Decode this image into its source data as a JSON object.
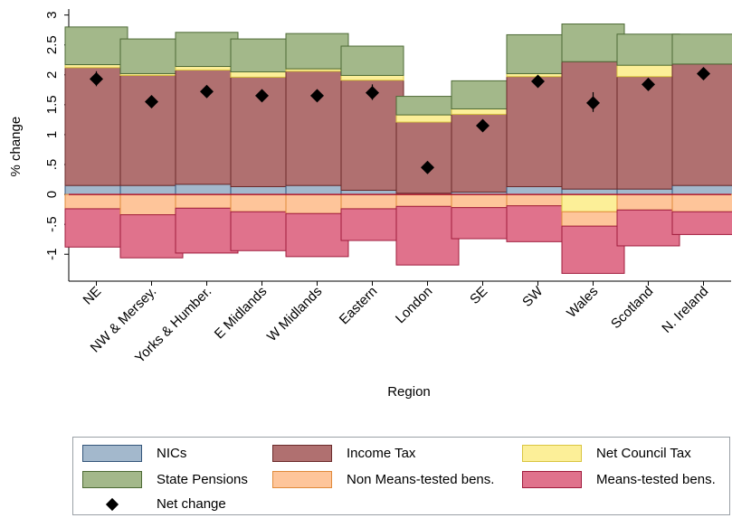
{
  "chart_data": {
    "type": "bar",
    "stacked": true,
    "xlabel": "Region",
    "ylabel": "% change",
    "ylim": [
      -1.45,
      3.1
    ],
    "yticks": [
      -1,
      -0.5,
      0,
      0.5,
      1,
      1.5,
      2,
      2.5,
      3
    ],
    "ytick_labels": [
      "-1",
      "-.5",
      "0",
      ".5",
      "1",
      "1.5",
      "2",
      "2.5",
      "3"
    ],
    "grid": false,
    "legend_position": "bottom",
    "categories": [
      "NE",
      "NW & Mersey.",
      "Yorks & Humber.",
      "E Midlands",
      "W Midlands",
      "Eastern",
      "London",
      "SE",
      "SW",
      "Wales",
      "Scotland",
      "N. Ireland"
    ],
    "series": [
      {
        "name": "NICs",
        "color": "#a3b8cc",
        "edge": "#33557a",
        "values": [
          0.15,
          0.15,
          0.17,
          0.13,
          0.15,
          0.07,
          0.02,
          0.04,
          0.13,
          0.09,
          0.09,
          0.15
        ]
      },
      {
        "name": "Income Tax",
        "color": "#b07070",
        "edge": "#6b2a2a",
        "values": [
          1.97,
          1.84,
          1.91,
          1.83,
          1.91,
          1.84,
          1.19,
          1.3,
          1.84,
          2.13,
          1.88,
          2.03
        ]
      },
      {
        "name": "Net Council Tax",
        "color": "#fcef98",
        "edge": "#d9c540",
        "values": [
          0.05,
          0.03,
          0.06,
          0.09,
          0.04,
          0.08,
          0.12,
          0.09,
          0.05,
          0.0,
          0.19,
          0.0
        ]
      },
      {
        "name": "State Pensions",
        "color": "#a3b88a",
        "edge": "#4d6a35",
        "values": [
          0.63,
          0.58,
          0.57,
          0.55,
          0.59,
          0.49,
          0.31,
          0.47,
          0.65,
          0.63,
          0.52,
          0.5
        ]
      },
      {
        "name": "Non Means-tested bens.",
        "color": "#fec59a",
        "edge": "#e08a3a",
        "values": [
          -0.24,
          -0.34,
          -0.23,
          -0.29,
          -0.32,
          -0.24,
          -0.2,
          -0.22,
          -0.19,
          -0.24,
          -0.26,
          -0.29
        ]
      },
      {
        "name": "Means-tested bens.",
        "color": "#e0728c",
        "edge": "#a01c3d",
        "values": [
          -0.64,
          -0.72,
          -0.75,
          -0.65,
          -0.72,
          -0.53,
          -0.98,
          -0.52,
          -0.6,
          -0.79,
          -0.6,
          -0.38
        ]
      }
    ],
    "negative_council_tax": {
      "Wales": -0.29
    },
    "net_change": {
      "name": "Net change",
      "values": [
        1.93,
        1.55,
        1.72,
        1.65,
        1.65,
        1.7,
        0.45,
        1.15,
        1.89,
        1.53,
        1.84,
        2.02
      ],
      "error_low": [
        1.81,
        1.49,
        1.65,
        1.55,
        1.58,
        1.58,
        0.39,
        1.09,
        1.83,
        1.38,
        1.78,
        1.96
      ],
      "error_high": [
        2.06,
        1.62,
        1.79,
        1.75,
        1.72,
        1.84,
        0.5,
        1.21,
        1.96,
        1.71,
        1.9,
        2.08
      ]
    },
    "zero_line_color": "#b2182b",
    "legend": [
      {
        "label": "NICs",
        "key": "NICs"
      },
      {
        "label": "Income Tax",
        "key": "Income Tax"
      },
      {
        "label": "Net Council Tax",
        "key": "Net Council Tax"
      },
      {
        "label": "State Pensions",
        "key": "State Pensions"
      },
      {
        "label": "Non Means-tested bens.",
        "key": "Non Means-tested bens."
      },
      {
        "label": "Means-tested bens.",
        "key": "Means-tested bens."
      },
      {
        "label": "Net change",
        "key": "Net change"
      }
    ]
  }
}
